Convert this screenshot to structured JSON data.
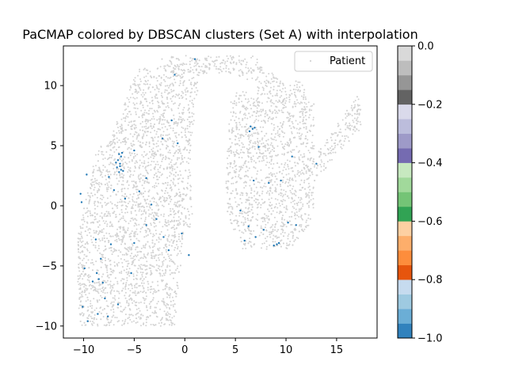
{
  "chart_data": {
    "type": "scatter",
    "title": "PaCMAP colored by DBSCAN clusters (Set A) with interpolation",
    "xlabel": "",
    "ylabel": "",
    "xlim": [
      -12,
      19
    ],
    "ylim": [
      -11,
      13.3
    ],
    "x_ticks": [
      -10,
      -5,
      0,
      5,
      10,
      15
    ],
    "y_ticks": [
      -10,
      -5,
      0,
      5,
      10
    ],
    "x_tick_labels": [
      "−10",
      "−5",
      "0",
      "5",
      "10",
      "15"
    ],
    "y_tick_labels": [
      "−10",
      "−5",
      "0",
      "5",
      "10"
    ],
    "grid": false,
    "legend": {
      "placement": "top-right",
      "entries": [
        {
          "label": "Patient",
          "color": "#d3d3d3"
        }
      ]
    },
    "series": [
      {
        "name": "Patient",
        "color": "#d3d3d3",
        "note_shape": "dense gray cloud (background points)",
        "regions": [
          {
            "x": [
              -10.5,
              -1.5
            ],
            "y": [
              -9.8,
              -2.0
            ]
          },
          {
            "x": [
              -8.5,
              0.5
            ],
            "y": [
              -3.0,
              8.0
            ]
          },
          {
            "x": [
              -4.5,
              2.5
            ],
            "y": [
              5.0,
              12.3
            ]
          },
          {
            "x": [
              1.5,
              9.0
            ],
            "y": [
              10.5,
              12.4
            ]
          },
          {
            "x": [
              4.0,
              13.5
            ],
            "y": [
              -3.5,
              8.5
            ]
          },
          {
            "x": [
              10.0,
              17.4
            ],
            "y": [
              2.0,
              9.6
            ]
          }
        ]
      },
      {
        "name": "",
        "color": "#1f77b4",
        "points": [
          [
            -6.5,
            4.3
          ],
          [
            -6.3,
            4.1
          ],
          [
            -6.6,
            3.8
          ],
          [
            -6.4,
            3.5
          ],
          [
            -6.7,
            3.2
          ],
          [
            -6.3,
            3.0
          ],
          [
            -6.5,
            2.8
          ],
          [
            -6.2,
            4.4
          ],
          [
            -6.8,
            3.6
          ],
          [
            -6.4,
            3.3
          ],
          [
            -6.1,
            2.9
          ],
          [
            -10.3,
            1.0
          ],
          [
            -10.2,
            0.3
          ],
          [
            -9.7,
            2.6
          ],
          [
            -7.5,
            2.4
          ],
          [
            -7.0,
            1.3
          ],
          [
            -5.9,
            0.6
          ],
          [
            -5.0,
            4.6
          ],
          [
            -4.5,
            1.2
          ],
          [
            -3.8,
            2.3
          ],
          [
            -3.3,
            0.1
          ],
          [
            -2.8,
            -1.1
          ],
          [
            -2.2,
            5.6
          ],
          [
            -1.3,
            7.1
          ],
          [
            -0.7,
            5.2
          ],
          [
            -1.6,
            -3.7
          ],
          [
            -2.1,
            -2.6
          ],
          [
            -0.3,
            -2.3
          ],
          [
            0.4,
            -4.1
          ],
          [
            -1.0,
            10.9
          ],
          [
            1.0,
            12.2
          ],
          [
            -3.8,
            -1.6
          ],
          [
            -5.0,
            -3.1
          ],
          [
            -8.8,
            -2.8
          ],
          [
            -8.3,
            -4.4
          ],
          [
            -8.7,
            -5.6
          ],
          [
            -8.5,
            -6.1
          ],
          [
            -8.1,
            -6.4
          ],
          [
            -9.1,
            -6.3
          ],
          [
            -7.9,
            -7.7
          ],
          [
            -8.6,
            -9.0
          ],
          [
            -9.6,
            -9.6
          ],
          [
            -7.6,
            -9.2
          ],
          [
            -6.6,
            -8.2
          ],
          [
            -5.3,
            -5.6
          ],
          [
            -9.9,
            -5.2
          ],
          [
            -10.1,
            -8.4
          ],
          [
            -7.3,
            -3.2
          ],
          [
            6.5,
            6.6
          ],
          [
            6.7,
            6.4
          ],
          [
            6.9,
            6.5
          ],
          [
            6.4,
            6.2
          ],
          [
            7.3,
            4.9
          ],
          [
            6.8,
            2.1
          ],
          [
            5.5,
            -0.4
          ],
          [
            6.3,
            -1.7
          ],
          [
            7.0,
            -2.6
          ],
          [
            8.3,
            1.9
          ],
          [
            9.5,
            2.1
          ],
          [
            10.2,
            -1.4
          ],
          [
            8.8,
            -3.3
          ],
          [
            9.3,
            -3.1
          ],
          [
            9.1,
            -3.2
          ],
          [
            11.0,
            -1.6
          ],
          [
            13.0,
            3.5
          ],
          [
            10.6,
            4.1
          ],
          [
            5.9,
            -2.9
          ],
          [
            7.8,
            -2.0
          ]
        ]
      }
    ],
    "colorbar": {
      "range": [
        -1.0,
        0.0
      ],
      "ticks": [
        0.0,
        -0.2,
        -0.4,
        -0.6,
        -0.8,
        -1.0
      ],
      "tick_labels": [
        "0.0",
        "−0.2",
        "−0.4",
        "−0.6",
        "−0.8",
        "−1.0"
      ],
      "colormap": "tab20c",
      "colors": [
        "#3182bd",
        "#6baed6",
        "#9ecae1",
        "#c6dbef",
        "#e6550d",
        "#fd8d3c",
        "#fdae6b",
        "#fdd0a2",
        "#31a354",
        "#74c476",
        "#a1d99b",
        "#c7e9c0",
        "#756bb1",
        "#9e9ac8",
        "#bcbddc",
        "#dadaeb",
        "#636363",
        "#969696",
        "#bdbdbd",
        "#d9d9d9"
      ]
    }
  }
}
